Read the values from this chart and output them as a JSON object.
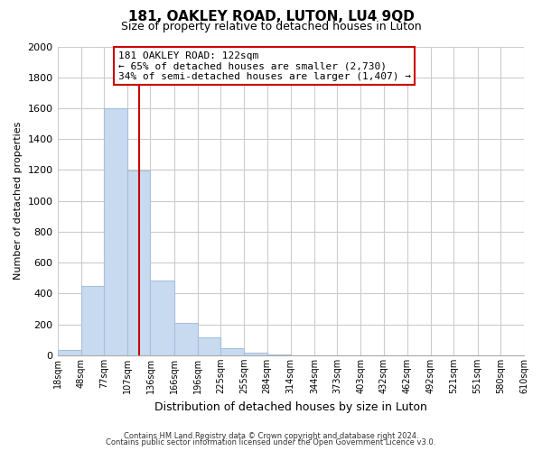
{
  "title1": "181, OAKLEY ROAD, LUTON, LU4 9QD",
  "title2": "Size of property relative to detached houses in Luton",
  "xlabel": "Distribution of detached houses by size in Luton",
  "ylabel": "Number of detached properties",
  "bar_edges": [
    18,
    48,
    77,
    107,
    136,
    166,
    196,
    225,
    255,
    284,
    314,
    344,
    373,
    403,
    432,
    462,
    492,
    521,
    551,
    580,
    610
  ],
  "bar_heights": [
    35,
    450,
    1600,
    1195,
    485,
    210,
    115,
    45,
    15,
    5,
    0,
    0,
    0,
    0,
    0,
    0,
    0,
    0,
    0,
    0
  ],
  "bar_color": "#c8daf0",
  "bar_edgecolor": "#a8c0dc",
  "property_line_x": 122,
  "property_line_color": "#cc0000",
  "ylim": [
    0,
    2000
  ],
  "yticks": [
    0,
    200,
    400,
    600,
    800,
    1000,
    1200,
    1400,
    1600,
    1800,
    2000
  ],
  "annotation_title": "181 OAKLEY ROAD: 122sqm",
  "annotation_line1": "← 65% of detached houses are smaller (2,730)",
  "annotation_line2": "34% of semi-detached houses are larger (1,407) →",
  "footer1": "Contains HM Land Registry data © Crown copyright and database right 2024.",
  "footer2": "Contains public sector information licensed under the Open Government Licence v3.0.",
  "tick_labels": [
    "18sqm",
    "48sqm",
    "77sqm",
    "107sqm",
    "136sqm",
    "166sqm",
    "196sqm",
    "225sqm",
    "255sqm",
    "284sqm",
    "314sqm",
    "344sqm",
    "373sqm",
    "403sqm",
    "432sqm",
    "462sqm",
    "492sqm",
    "521sqm",
    "551sqm",
    "580sqm",
    "610sqm"
  ],
  "tick_positions": [
    18,
    48,
    77,
    107,
    136,
    166,
    196,
    225,
    255,
    284,
    314,
    344,
    373,
    403,
    432,
    462,
    492,
    521,
    551,
    580,
    610
  ],
  "grid_color": "#cccccc",
  "background_color": "#ffffff",
  "title1_fontsize": 11,
  "title2_fontsize": 9
}
